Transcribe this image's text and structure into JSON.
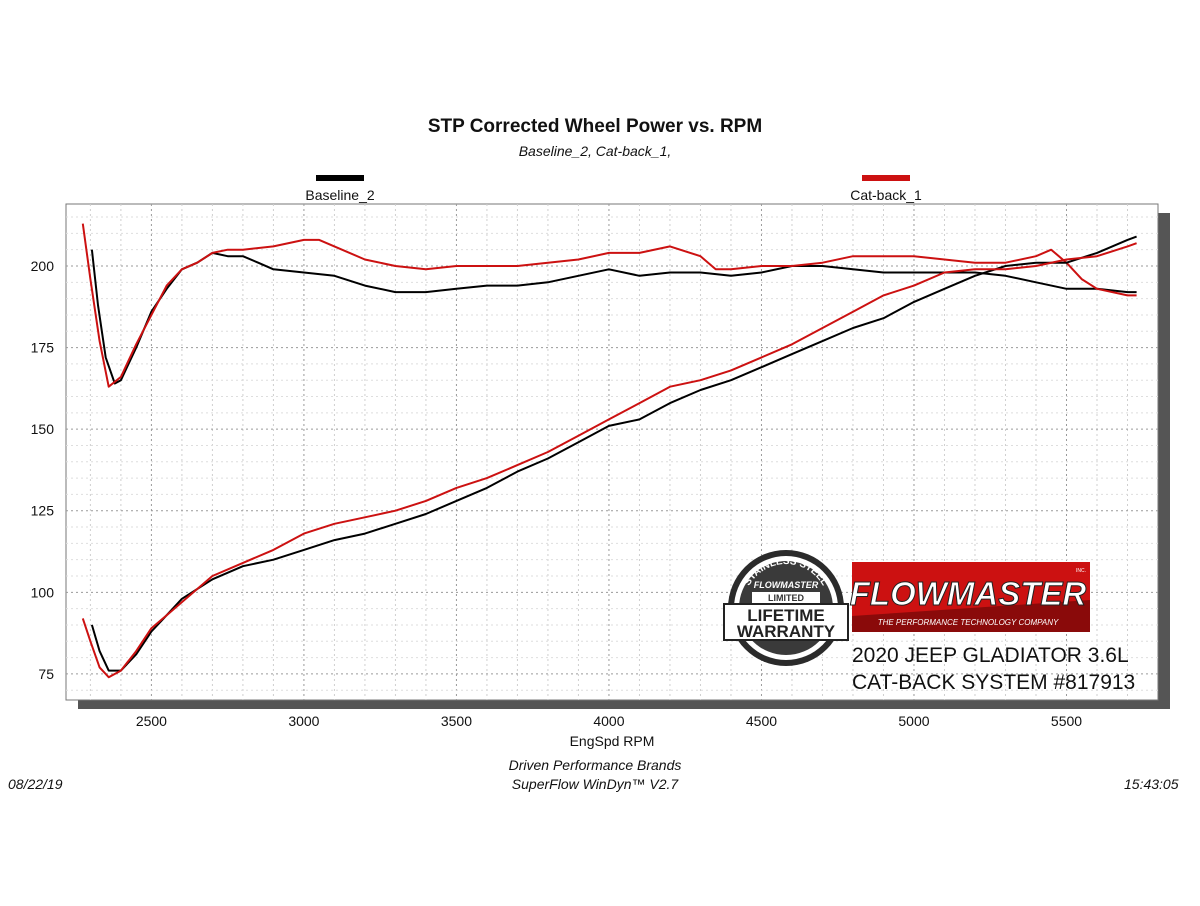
{
  "chart_data": {
    "type": "line",
    "title": "STP Corrected Wheel Power vs. RPM",
    "subtitle": "Baseline_2, Cat-back_1,",
    "xlabel": "EngSpd  RPM",
    "ylabel": "",
    "xlim": [
      2220,
      5800
    ],
    "ylim": [
      67,
      219
    ],
    "x_ticks": [
      2500,
      3000,
      3500,
      4000,
      4500,
      5000,
      5500
    ],
    "y_ticks": [
      75,
      100,
      125,
      150,
      175,
      200
    ],
    "grid": true,
    "legend": [
      {
        "name": "Baseline_2",
        "color": "#000000"
      },
      {
        "name": "Cat-back_1",
        "color": "#cc1111"
      }
    ],
    "series": [
      {
        "name": "Baseline_2 Torque",
        "color": "#000000",
        "x": [
          2305,
          2325,
          2350,
          2380,
          2400,
          2450,
          2500,
          2550,
          2600,
          2650,
          2700,
          2750,
          2800,
          2850,
          2900,
          3000,
          3100,
          3200,
          3300,
          3400,
          3500,
          3600,
          3700,
          3800,
          3900,
          4000,
          4100,
          4200,
          4300,
          4400,
          4500,
          4600,
          4700,
          4800,
          4900,
          5000,
          5100,
          5200,
          5300,
          5400,
          5500,
          5600,
          5700,
          5730
        ],
        "y": [
          205,
          188,
          172,
          164,
          165,
          175,
          186,
          193,
          199,
          201,
          204,
          203,
          203,
          201,
          199,
          198,
          197,
          194,
          192,
          192,
          193,
          194,
          194,
          195,
          197,
          199,
          197,
          198,
          198,
          197,
          198,
          200,
          200,
          199,
          198,
          198,
          198,
          198,
          197,
          195,
          193,
          193,
          192,
          192
        ]
      },
      {
        "name": "Cat-back_1 Torque",
        "color": "#cc1111",
        "x": [
          2275,
          2300,
          2330,
          2360,
          2400,
          2450,
          2500,
          2550,
          2600,
          2650,
          2700,
          2750,
          2800,
          2900,
          3000,
          3050,
          3100,
          3200,
          3300,
          3400,
          3500,
          3600,
          3700,
          3800,
          3900,
          4000,
          4100,
          4200,
          4300,
          4350,
          4400,
          4500,
          4600,
          4700,
          4800,
          4900,
          5000,
          5100,
          5200,
          5300,
          5400,
          5450,
          5500,
          5550,
          5600,
          5700,
          5730
        ],
        "y": [
          213,
          196,
          177,
          163,
          166,
          176,
          185,
          194,
          199,
          201,
          204,
          205,
          205,
          206,
          208,
          208,
          206,
          202,
          200,
          199,
          200,
          200,
          200,
          201,
          202,
          204,
          204,
          206,
          203,
          199,
          199,
          200,
          200,
          201,
          203,
          203,
          203,
          202,
          201,
          201,
          203,
          205,
          201,
          196,
          193,
          191,
          191
        ]
      },
      {
        "name": "Baseline_2 Power",
        "color": "#000000",
        "x": [
          2305,
          2330,
          2360,
          2400,
          2450,
          2500,
          2550,
          2600,
          2700,
          2800,
          2900,
          3000,
          3100,
          3200,
          3300,
          3400,
          3500,
          3600,
          3700,
          3800,
          3900,
          4000,
          4100,
          4200,
          4300,
          4400,
          4500,
          4600,
          4700,
          4800,
          4900,
          5000,
          5100,
          5200,
          5300,
          5400,
          5500,
          5600,
          5700,
          5730
        ],
        "y": [
          90,
          82,
          76,
          76,
          81,
          88,
          93,
          98,
          104,
          108,
          110,
          113,
          116,
          118,
          121,
          124,
          128,
          132,
          137,
          141,
          146,
          151,
          153,
          158,
          162,
          165,
          169,
          173,
          177,
          181,
          184,
          189,
          193,
          197,
          200,
          201,
          201,
          204,
          208,
          209
        ]
      },
      {
        "name": "Cat-back_1 Power",
        "color": "#cc1111",
        "x": [
          2275,
          2300,
          2330,
          2360,
          2400,
          2450,
          2500,
          2550,
          2600,
          2700,
          2800,
          2900,
          3000,
          3100,
          3200,
          3300,
          3400,
          3500,
          3600,
          3700,
          3800,
          3900,
          4000,
          4100,
          4200,
          4300,
          4400,
          4500,
          4600,
          4700,
          4800,
          4900,
          5000,
          5100,
          5200,
          5300,
          5400,
          5500,
          5600,
          5700,
          5730
        ],
        "y": [
          92,
          85,
          77,
          74,
          76,
          82,
          89,
          93,
          97,
          105,
          109,
          113,
          118,
          121,
          123,
          125,
          128,
          132,
          135,
          139,
          143,
          148,
          153,
          158,
          163,
          165,
          168,
          172,
          176,
          181,
          186,
          191,
          194,
          198,
          199,
          199,
          200,
          202,
          203,
          206,
          207
        ]
      }
    ],
    "footer_line1": "Driven Performance Brands",
    "footer_line2": "SuperFlow WinDyn™  V2.7",
    "date": "08/22/19",
    "time": "15:43:05"
  },
  "badge": {
    "arc_text": "STAINLESS STEEL",
    "brand": "FLOWMASTER",
    "limited": "LIMITED",
    "line1": "LIFETIME",
    "line2": "WARRANTY"
  },
  "logo": {
    "brand": "FLOWMASTER",
    "reg": "INC.",
    "tagline": "THE PERFORMANCE TECHNOLOGY COMPANY"
  },
  "vehicle_caption": {
    "line1": "2020 JEEP GLADIATOR 3.6L",
    "line2": "CAT-BACK SYSTEM #817913"
  }
}
